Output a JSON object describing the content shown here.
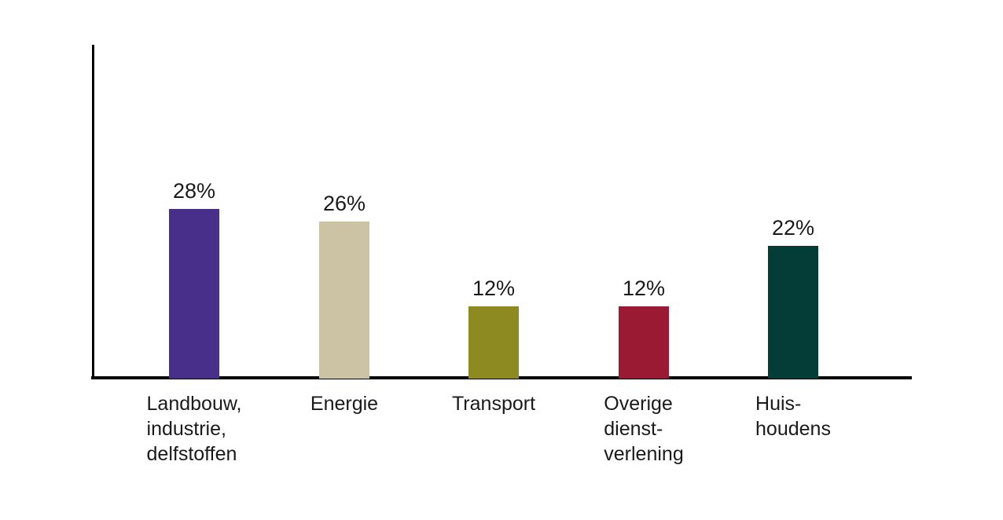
{
  "chart_data": {
    "type": "bar",
    "title": "",
    "xlabel": "",
    "ylabel": "",
    "unit": "%",
    "categories": [
      [
        "Landbouw,",
        "industrie,",
        "delfstoffen"
      ],
      [
        "Energie"
      ],
      [
        "Transport"
      ],
      [
        "Overige",
        "dienst-",
        "verlening"
      ],
      [
        "Huis-",
        "houdens"
      ]
    ],
    "values": [
      28,
      26,
      12,
      12,
      22
    ],
    "value_labels": [
      "28%",
      "26%",
      "12%",
      "12%",
      "22%"
    ],
    "bar_colors": [
      "#48308a",
      "#cbc3a3",
      "#8c8a20",
      "#9a1a33",
      "#043d38"
    ],
    "ylim": [
      0,
      55
    ],
    "grid": false,
    "legend": false,
    "axis_color": "#000000",
    "text_color": "#1a1a1a",
    "background_color": "#ffffff"
  }
}
